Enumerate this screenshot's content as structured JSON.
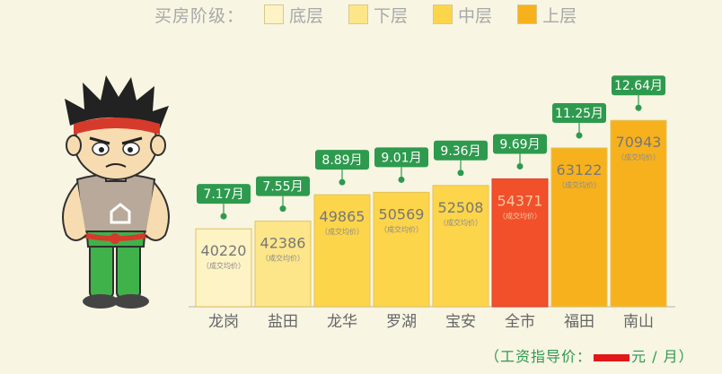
{
  "legend": {
    "title": "买房阶级：",
    "items": [
      {
        "label": "底层",
        "color": "#fdf3c4"
      },
      {
        "label": "下层",
        "color": "#fde68a"
      },
      {
        "label": "中层",
        "color": "#fdd54a"
      },
      {
        "label": "上层",
        "color": "#f7b11d"
      }
    ]
  },
  "chart_data": {
    "type": "bar",
    "categories": [
      "龙岗",
      "盐田",
      "龙华",
      "罗湖",
      "宝安",
      "全市",
      "福田",
      "南山"
    ],
    "values": [
      40220,
      42386,
      49865,
      50569,
      52508,
      54371,
      63122,
      70943
    ],
    "value_sublabel": "（成交均价）",
    "months_labels": [
      "7.17月",
      "7.55月",
      "8.89月",
      "9.01月",
      "9.36月",
      "9.69月",
      "11.25月",
      "12.64月"
    ],
    "months": [
      7.17,
      7.55,
      8.89,
      9.01,
      9.36,
      9.69,
      11.25,
      12.64
    ],
    "tiers": [
      0,
      1,
      2,
      2,
      2,
      3,
      3,
      3
    ],
    "highlight_category": "全市",
    "highlight_color": "#f1502a",
    "label_color": "#2e9a4e",
    "bar_colors": [
      "#fdf3c4",
      "#fde68a",
      "#fdd54a",
      "#f7b11d"
    ]
  },
  "footnote": {
    "prefix": "（工资指导价：",
    "suffix": "元 / 月）"
  }
}
